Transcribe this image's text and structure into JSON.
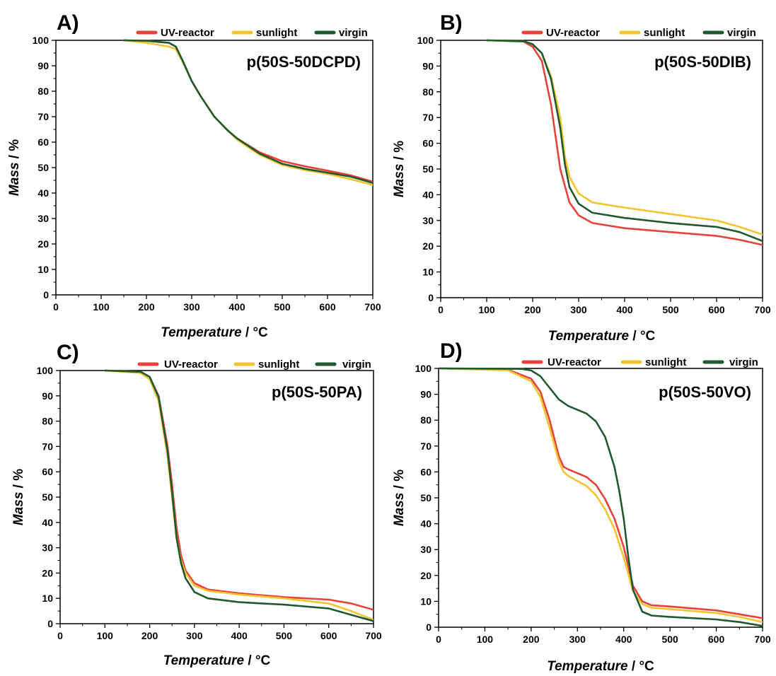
{
  "x_axis_title_italic": "Temperature",
  "x_axis_title_unit": " / °C",
  "y_axis_title_italic": "Mass",
  "y_axis_title_unit": " / %",
  "series_colors": {
    "UV-reactor": "#e8413a",
    "sunlight": "#f2c430",
    "virgin": "#1e5a2e"
  },
  "chart_data": [
    {
      "type": "line",
      "panel": "A)",
      "sample_label": "p(50S-50DCPD)",
      "xlim": [
        0,
        700
      ],
      "ylim": [
        0,
        100
      ],
      "x_ticks": [
        0,
        100,
        200,
        300,
        400,
        500,
        600,
        700
      ],
      "y_ticks": [
        0,
        10,
        20,
        30,
        40,
        50,
        60,
        70,
        80,
        90,
        100
      ],
      "legend": [
        "UV-reactor",
        "sunlight",
        "virgin"
      ],
      "legend_position": "top",
      "series": [
        {
          "name": "UV-reactor",
          "x": [
            150,
            200,
            250,
            265,
            280,
            300,
            320,
            350,
            380,
            400,
            450,
            500,
            550,
            600,
            650,
            700
          ],
          "y": [
            100,
            99.8,
            99,
            97.5,
            92,
            84,
            78,
            70,
            64.5,
            61.5,
            56,
            52.5,
            50.5,
            48.8,
            47,
            44.5
          ]
        },
        {
          "name": "sunlight",
          "x": [
            150,
            200,
            250,
            265,
            280,
            300,
            320,
            350,
            380,
            400,
            450,
            500,
            550,
            600,
            650,
            700
          ],
          "y": [
            100,
            99,
            97.5,
            96.5,
            91.5,
            84,
            78,
            70,
            64.5,
            61,
            55,
            51,
            49,
            47.5,
            45.5,
            43.2
          ]
        },
        {
          "name": "virgin",
          "x": [
            150,
            200,
            250,
            265,
            280,
            300,
            320,
            350,
            380,
            400,
            450,
            500,
            550,
            600,
            650,
            700
          ],
          "y": [
            100,
            99.8,
            99,
            97.5,
            92,
            84,
            78,
            70,
            64.5,
            61.5,
            55.5,
            51.5,
            49.5,
            48,
            46.5,
            44
          ]
        }
      ]
    },
    {
      "type": "line",
      "panel": "B)",
      "sample_label": "p(50S-50DIB)",
      "xlim": [
        0,
        700
      ],
      "ylim": [
        0,
        100
      ],
      "x_ticks": [
        0,
        100,
        200,
        300,
        400,
        500,
        600,
        700
      ],
      "y_ticks": [
        0,
        10,
        20,
        30,
        40,
        50,
        60,
        70,
        80,
        90,
        100
      ],
      "legend": [
        "UV-reactor",
        "sunlight",
        "virgin"
      ],
      "legend_position": "top",
      "series": [
        {
          "name": "UV-reactor",
          "x": [
            100,
            180,
            200,
            220,
            240,
            260,
            280,
            300,
            330,
            400,
            500,
            600,
            650,
            700
          ],
          "y": [
            100,
            99.5,
            97.5,
            92,
            75,
            50,
            37,
            32,
            29,
            27,
            25.5,
            24,
            22.5,
            20.5
          ]
        },
        {
          "name": "sunlight",
          "x": [
            100,
            180,
            200,
            220,
            240,
            260,
            270,
            280,
            300,
            330,
            400,
            500,
            600,
            650,
            700
          ],
          "y": [
            100,
            99.7,
            98.5,
            95,
            86,
            70,
            55,
            47,
            40.5,
            37,
            35,
            32.5,
            30,
            27.5,
            24.5
          ]
        },
        {
          "name": "virgin",
          "x": [
            100,
            180,
            200,
            220,
            240,
            260,
            270,
            280,
            300,
            330,
            400,
            500,
            600,
            650,
            700
          ],
          "y": [
            100,
            99.7,
            98.5,
            95,
            85,
            66,
            52,
            43,
            36.5,
            33,
            31,
            29,
            27.5,
            25.5,
            22
          ]
        }
      ]
    },
    {
      "type": "line",
      "panel": "C)",
      "sample_label": "p(50S-50PA)",
      "xlim": [
        0,
        700
      ],
      "ylim": [
        0,
        100
      ],
      "x_ticks": [
        0,
        100,
        200,
        300,
        400,
        500,
        600,
        700
      ],
      "y_ticks": [
        0,
        10,
        20,
        30,
        40,
        50,
        60,
        70,
        80,
        90,
        100
      ],
      "legend": [
        "UV-reactor",
        "sunlight",
        "virgin"
      ],
      "legend_position": "top",
      "series": [
        {
          "name": "UV-reactor",
          "x": [
            100,
            180,
            200,
            220,
            240,
            250,
            260,
            270,
            280,
            300,
            330,
            400,
            500,
            600,
            650,
            700
          ],
          "y": [
            100,
            99.5,
            97.5,
            90,
            70,
            55,
            38,
            27,
            21,
            16,
            13.5,
            12,
            10.5,
            9.5,
            8,
            5.5
          ]
        },
        {
          "name": "sunlight",
          "x": [
            100,
            180,
            200,
            220,
            240,
            250,
            260,
            270,
            280,
            300,
            330,
            400,
            500,
            600,
            650,
            700
          ],
          "y": [
            100,
            99,
            96.5,
            88,
            66,
            50,
            34,
            25,
            20,
            15,
            13,
            11.5,
            10,
            8,
            5,
            1.5
          ]
        },
        {
          "name": "virgin",
          "x": [
            100,
            180,
            200,
            220,
            240,
            250,
            260,
            270,
            280,
            300,
            330,
            400,
            500,
            600,
            650,
            700
          ],
          "y": [
            100,
            99.5,
            97.5,
            89.5,
            68,
            52,
            34,
            24,
            18,
            12.5,
            10,
            8.5,
            7.5,
            6,
            3.5,
            1
          ]
        }
      ]
    },
    {
      "type": "line",
      "panel": "D)",
      "sample_label": "p(50S-50VO)",
      "xlim": [
        0,
        700
      ],
      "ylim": [
        0,
        100
      ],
      "x_ticks": [
        0,
        100,
        200,
        300,
        400,
        500,
        600,
        700
      ],
      "y_ticks": [
        0,
        10,
        20,
        30,
        40,
        50,
        60,
        70,
        80,
        90,
        100
      ],
      "legend": [
        "UV-reactor",
        "sunlight",
        "virgin"
      ],
      "legend_position": "top",
      "series": [
        {
          "name": "UV-reactor",
          "x": [
            0,
            150,
            200,
            220,
            240,
            260,
            270,
            280,
            300,
            320,
            340,
            360,
            380,
            400,
            420,
            440,
            460,
            500,
            600,
            650,
            700
          ],
          "y": [
            100,
            99.5,
            96,
            91,
            80,
            66,
            62,
            61,
            59.5,
            58,
            55,
            49.5,
            42,
            31,
            16,
            10,
            8.5,
            8,
            6.5,
            5,
            3.5
          ]
        },
        {
          "name": "sunlight",
          "x": [
            0,
            150,
            200,
            220,
            240,
            260,
            270,
            280,
            300,
            320,
            340,
            360,
            380,
            400,
            420,
            440,
            460,
            500,
            600,
            650,
            700
          ],
          "y": [
            100,
            99.3,
            95,
            89,
            77,
            64,
            60,
            58.5,
            56.5,
            54.5,
            51,
            45.5,
            38,
            27,
            14,
            9,
            7.5,
            7,
            5.5,
            4,
            2
          ]
        },
        {
          "name": "virgin",
          "x": [
            0,
            180,
            200,
            220,
            240,
            260,
            280,
            300,
            320,
            340,
            360,
            380,
            390,
            400,
            410,
            420,
            440,
            460,
            500,
            600,
            650,
            700
          ],
          "y": [
            100,
            99.8,
            99.2,
            97,
            92.5,
            88,
            85.5,
            84,
            82.5,
            79.5,
            73.5,
            62,
            53,
            42,
            27,
            14.5,
            6,
            4.5,
            4,
            3,
            2,
            0.5
          ]
        }
      ]
    }
  ]
}
